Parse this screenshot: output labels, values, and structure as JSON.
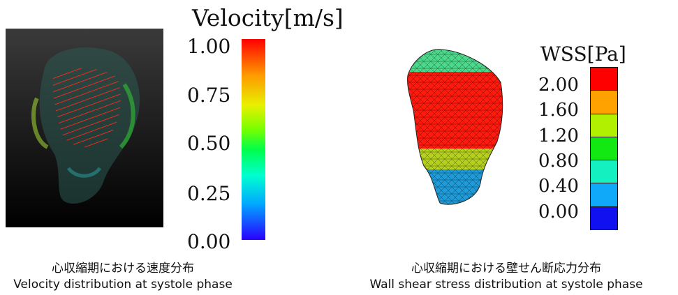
{
  "velocity": {
    "legend_title": "Velocity[m/s]",
    "ticks": [
      "1.00",
      "0.75",
      "0.50",
      "0.25",
      "0.00"
    ],
    "caption_ja": "心収縮期における速度分布",
    "caption_en": "Velocity distribution at systole phase"
  },
  "wss": {
    "legend_title": "WSS[Pa]",
    "ticks": [
      "2.00",
      "1.60",
      "1.20",
      "0.80",
      "0.40",
      "0.00"
    ],
    "bands": [
      "#ff0000",
      "#ffa200",
      "#b0f000",
      "#12e812",
      "#14f0c0",
      "#10a8f8",
      "#1010f0"
    ],
    "caption_ja": "心収縮期における壁せん断応力分布",
    "caption_en": "Wall shear stress distribution at systole phase"
  }
}
